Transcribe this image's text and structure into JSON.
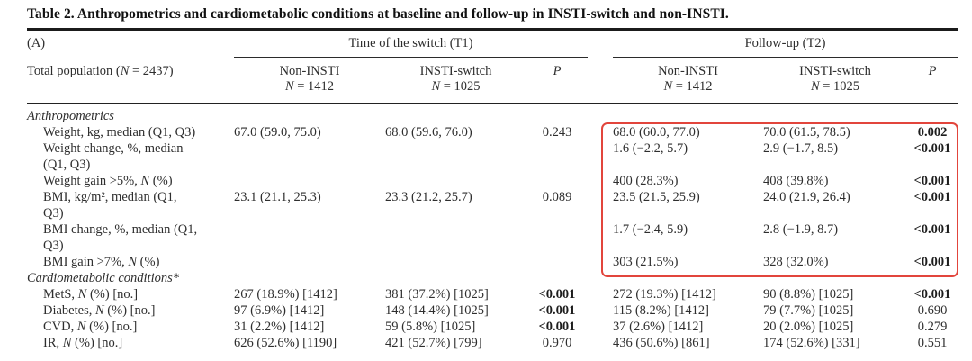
{
  "title": "Table 2. Anthropometrics and cardiometabolic conditions at baseline and follow-up in INSTI-switch and non-INSTI.",
  "panel_label": "(A)",
  "header": {
    "t1_group": "Time of the switch (T1)",
    "t2_group": "Follow-up (T2)",
    "row_label": "Total population (N = 2437)",
    "t1_non": "Non-INSTI\nN = 1412",
    "t1_insti": "INSTI-switch\nN = 1025",
    "t1_p": "P",
    "t2_non": "Non-INSTI\nN = 1412",
    "t2_insti": "INSTI-switch\nN = 1025",
    "t2_p": "P"
  },
  "highlight_color": "#e2453c",
  "rows": [
    {
      "label": "Anthropometrics",
      "section": true,
      "t1_non": "",
      "t1_insti": "",
      "t1_p": "",
      "t2_non": "",
      "t2_insti": "",
      "t2_p": ""
    },
    {
      "label": "Weight, kg, median (Q1, Q3)",
      "section": false,
      "t1_non": "67.0 (59.0, 75.0)",
      "t1_insti": "68.0 (59.6, 76.0)",
      "t1_p": "0.243",
      "t1_p_bold": false,
      "t2_non": "68.0 (60.0, 77.0)",
      "t2_insti": "70.0 (61.5, 78.5)",
      "t2_p": "0.002",
      "t2_p_bold": true
    },
    {
      "label": "Weight change, %, median\n(Q1, Q3)",
      "section": false,
      "t1_non": "",
      "t1_insti": "",
      "t1_p": "",
      "t2_non": "1.6 (−2.2, 5.7)",
      "t2_insti": "2.9 (−1.7, 8.5)",
      "t2_p": "<0.001",
      "t2_p_bold": true
    },
    {
      "label": "Weight gain >5%, N (%)",
      "section": false,
      "t1_non": "",
      "t1_insti": "",
      "t1_p": "",
      "t2_non": "400 (28.3%)",
      "t2_insti": "408 (39.8%)",
      "t2_p": "<0.001",
      "t2_p_bold": true
    },
    {
      "label": "BMI, kg/m², median (Q1,\nQ3)",
      "section": false,
      "t1_non": "23.1 (21.1, 25.3)",
      "t1_insti": "23.3 (21.2, 25.7)",
      "t1_p": "0.089",
      "t1_p_bold": false,
      "t2_non": "23.5 (21.5, 25.9)",
      "t2_insti": "24.0 (21.9, 26.4)",
      "t2_p": "<0.001",
      "t2_p_bold": true
    },
    {
      "label": "BMI change, %, median (Q1,\nQ3)",
      "section": false,
      "t1_non": "",
      "t1_insti": "",
      "t1_p": "",
      "t2_non": "1.7 (−2.4, 5.9)",
      "t2_insti": "2.8 (−1.9, 8.7)",
      "t2_p": "<0.001",
      "t2_p_bold": true
    },
    {
      "label": "BMI gain >7%, N (%)",
      "section": false,
      "t1_non": "",
      "t1_insti": "",
      "t1_p": "",
      "t2_non": "303 (21.5%)",
      "t2_insti": "328 (32.0%)",
      "t2_p": "<0.001",
      "t2_p_bold": true
    },
    {
      "label": "Cardiometabolic conditions*",
      "section": true,
      "t1_non": "",
      "t1_insti": "",
      "t1_p": "",
      "t2_non": "",
      "t2_insti": "",
      "t2_p": ""
    },
    {
      "label": "MetS, N (%) [no.]",
      "section": false,
      "t1_non": "267 (18.9%) [1412]",
      "t1_insti": "381 (37.2%) [1025]",
      "t1_p": "<0.001",
      "t1_p_bold": true,
      "t2_non": "272 (19.3%) [1412]",
      "t2_insti": "90 (8.8%) [1025]",
      "t2_p": "<0.001",
      "t2_p_bold": true
    },
    {
      "label": "Diabetes, N (%) [no.]",
      "section": false,
      "t1_non": "97 (6.9%) [1412]",
      "t1_insti": "148 (14.4%) [1025]",
      "t1_p": "<0.001",
      "t1_p_bold": true,
      "t2_non": "115 (8.2%) [1412]",
      "t2_insti": "79 (7.7%) [1025]",
      "t2_p": "0.690",
      "t2_p_bold": false
    },
    {
      "label": "CVD, N (%) [no.]",
      "section": false,
      "t1_non": "31 (2.2%) [1412]",
      "t1_insti": "59 (5.8%) [1025]",
      "t1_p": "<0.001",
      "t1_p_bold": true,
      "t2_non": "37 (2.6%) [1412]",
      "t2_insti": "20 (2.0%) [1025]",
      "t2_p": "0.279",
      "t2_p_bold": false
    },
    {
      "label": "IR, N (%) [no.]",
      "section": false,
      "t1_non": "626 (52.6%) [1190]",
      "t1_insti": "421 (52.7%) [799]",
      "t1_p": "0.970",
      "t1_p_bold": false,
      "t2_non": "436 (50.6%) [861]",
      "t2_insti": "174 (52.6%) [331]",
      "t2_p": "0.551",
      "t2_p_bold": false
    }
  ]
}
